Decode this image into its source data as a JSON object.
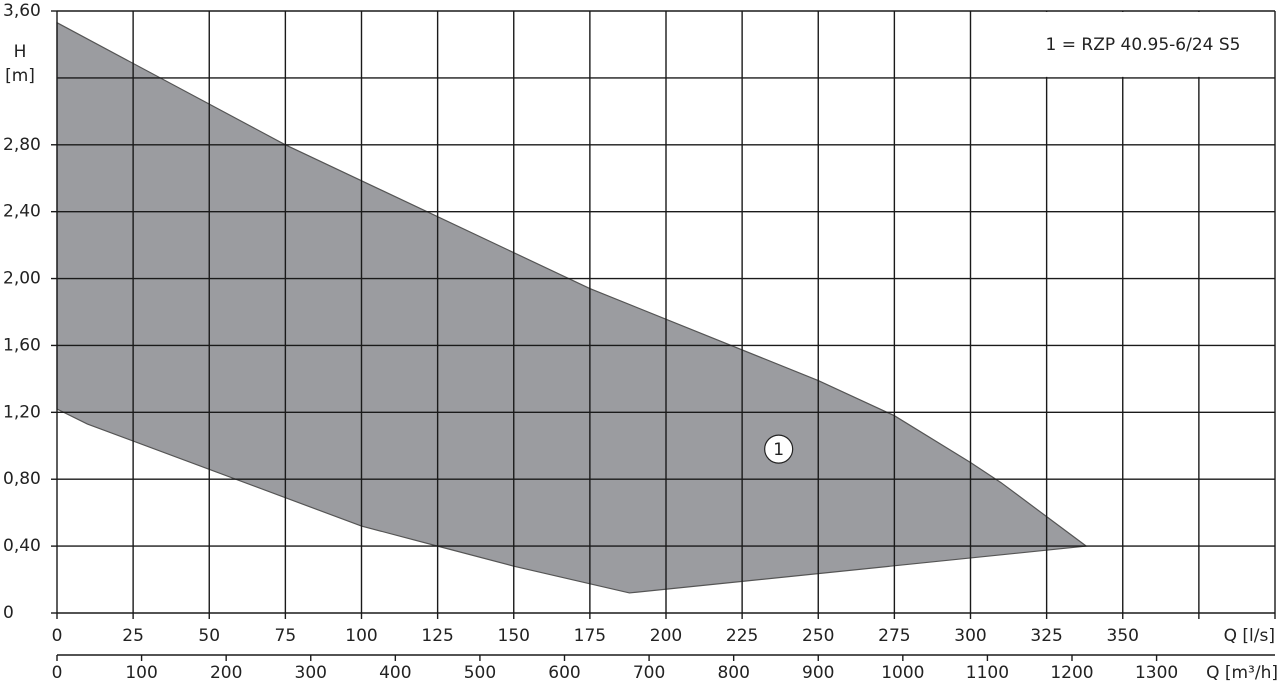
{
  "chart_data": {
    "type": "area",
    "legend_text": "1 =  RZP 40.95-6/24 S5",
    "y_label": "H",
    "y_unit": "[m]",
    "x_label": "Q [l/s]",
    "x2_label": "Q [m³/h]",
    "annotation": "1",
    "xlim": [
      0,
      400
    ],
    "xticks": [
      0,
      25,
      50,
      75,
      100,
      125,
      150,
      175,
      200,
      225,
      250,
      275,
      300,
      325,
      350
    ],
    "xgrid": [
      0,
      25,
      50,
      75,
      100,
      125,
      150,
      175,
      200,
      225,
      250,
      275,
      300,
      325,
      350,
      375,
      400
    ],
    "x2lim": [
      0,
      1440
    ],
    "x2ticks": [
      0,
      100,
      200,
      300,
      400,
      500,
      600,
      700,
      800,
      900,
      1000,
      1100,
      1200,
      1300
    ],
    "ylim": [
      0,
      3.6
    ],
    "yticks": [
      0,
      {
        "value": 0.4,
        "label": "0,40"
      },
      {
        "value": 0.8,
        "label": "0,80"
      },
      {
        "value": 1.2,
        "label": "1,20"
      },
      {
        "value": 1.6,
        "label": "1,60"
      },
      {
        "value": 2.0,
        "label": "2,00"
      },
      {
        "value": 2.4,
        "label": "2,40"
      },
      {
        "value": 2.8,
        "label": "2,80"
      },
      {
        "value": 3.6,
        "label": "3,60"
      }
    ],
    "ygrid": [
      0,
      0.4,
      0.8,
      1.2,
      1.6,
      2.0,
      2.4,
      2.8,
      3.2,
      3.6
    ],
    "grid": true,
    "series": [
      {
        "color": "#9b9ca0",
        "x": [
          0,
          75,
          175,
          250,
          275,
          300,
          310,
          338,
          188,
          150,
          125,
          100,
          10,
          0
        ],
        "values": [
          3.53,
          2.8,
          1.94,
          1.39,
          1.18,
          0.9,
          0.78,
          0.4,
          0.12,
          0.28,
          0.4,
          0.52,
          1.13,
          1.22
        ]
      }
    ]
  }
}
